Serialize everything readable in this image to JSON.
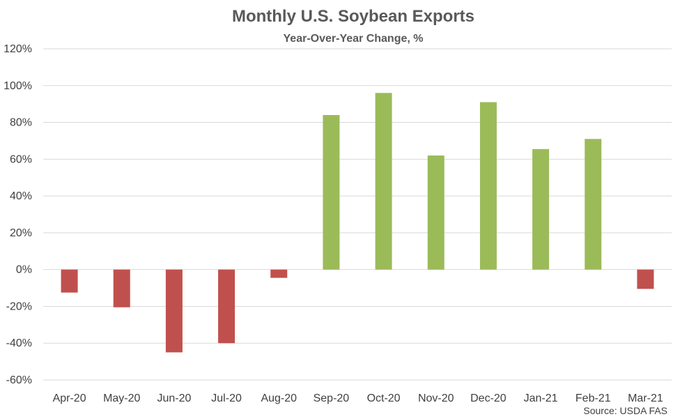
{
  "chart_data": {
    "type": "bar",
    "title": "Monthly U.S. Soybean Exports",
    "subtitle": "Year-Over-Year Change, %",
    "xlabel": "",
    "ylabel": "",
    "categories": [
      "Apr-20",
      "May-20",
      "Jun-20",
      "Jul-20",
      "Aug-20",
      "Sep-20",
      "Oct-20",
      "Nov-20",
      "Dec-20",
      "Jan-21",
      "Feb-21",
      "Mar-21"
    ],
    "values": [
      -12.5,
      -20.5,
      -45,
      -40,
      -4.5,
      84,
      96,
      62,
      91,
      65.5,
      71,
      -10.5
    ],
    "ylim": [
      -60,
      120
    ],
    "yticks": [
      -60,
      -40,
      -20,
      0,
      20,
      40,
      60,
      80,
      100,
      120
    ],
    "ytick_labels": [
      "-60%",
      "-40%",
      "-20%",
      "0%",
      "20%",
      "40%",
      "60%",
      "80%",
      "100%",
      "120%"
    ],
    "grid": true,
    "legend": "none",
    "colors": {
      "positive": "#9BBB59",
      "negative": "#C0504D",
      "grid": "#D9D9D9"
    },
    "source": "Source: USDA FAS"
  }
}
